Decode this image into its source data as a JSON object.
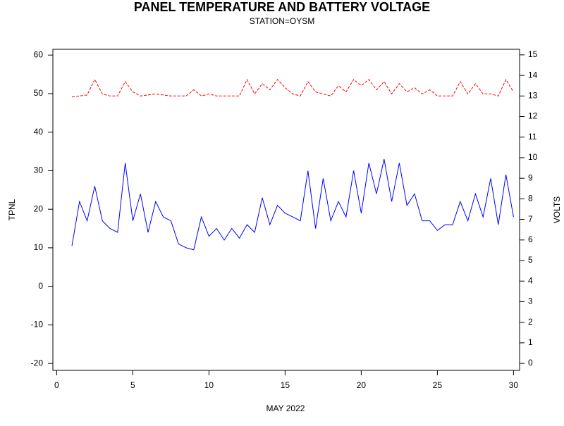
{
  "chart_data": {
    "type": "line",
    "title": "PANEL TEMPERATURE AND BATTERY VOLTAGE",
    "subtitle": "STATION=OYSM",
    "x_label": "MAY 2022",
    "y_label": "TPNL",
    "y2_label": "VOLTS",
    "xlim": [
      -0.25,
      30.4
    ],
    "xticks": [
      0,
      5,
      10,
      15,
      20,
      25,
      30
    ],
    "ylim": [
      -21.8,
      61.5
    ],
    "yticks": [
      -20,
      -10,
      0,
      10,
      20,
      30,
      40,
      50,
      60
    ],
    "y2lim": [
      -0.34,
      15.27
    ],
    "y2ticks": [
      0,
      1,
      2,
      3,
      4,
      5,
      6,
      7,
      8,
      9,
      10,
      11,
      12,
      13,
      14,
      15
    ],
    "x": [
      1,
      1.5,
      2,
      2.5,
      3,
      3.5,
      4,
      4.5,
      5,
      5.5,
      6,
      6.5,
      7,
      7.5,
      8,
      8.5,
      9,
      9.5,
      10,
      10.5,
      11,
      11.5,
      12,
      12.5,
      13,
      13.5,
      14,
      14.5,
      15,
      15.5,
      16,
      16.5,
      17,
      17.5,
      18,
      18.5,
      19,
      19.5,
      20,
      20.5,
      21,
      21.5,
      22,
      22.5,
      23,
      23.5,
      24,
      24.5,
      25,
      25.5,
      26,
      26.5,
      27,
      27.5,
      28,
      28.5,
      29,
      29.5,
      30
    ],
    "series": [
      {
        "name": "TPNL",
        "color": "#0000ff",
        "dash": false,
        "axis": "y",
        "values": [
          10.5,
          22,
          17,
          26,
          17,
          15,
          14,
          32,
          17,
          24,
          14,
          22,
          18,
          17,
          11,
          10,
          9.5,
          18,
          13,
          15,
          12,
          15,
          12.5,
          16,
          14,
          23,
          16,
          21,
          19,
          18,
          17,
          30,
          15,
          28,
          17,
          22,
          18,
          30,
          19,
          32,
          24,
          33,
          22,
          32,
          21,
          24,
          17,
          17,
          14.5,
          16,
          16,
          22,
          17,
          24,
          18,
          28,
          16,
          29,
          18
        ]
      },
      {
        "name": "VOLTS",
        "color": "#ff0000",
        "dash": true,
        "axis": "y2",
        "values": [
          12.95,
          13.0,
          13.05,
          13.8,
          13.1,
          13.0,
          13.0,
          13.7,
          13.2,
          13.0,
          13.05,
          13.1,
          13.05,
          13.0,
          13.0,
          13.0,
          13.3,
          13.0,
          13.1,
          13.0,
          13.0,
          13.0,
          13.0,
          13.8,
          13.1,
          13.6,
          13.3,
          13.8,
          13.4,
          13.1,
          13.0,
          13.7,
          13.2,
          13.1,
          13.0,
          13.5,
          13.2,
          13.8,
          13.5,
          13.8,
          13.3,
          13.7,
          13.1,
          13.6,
          13.2,
          13.4,
          13.1,
          13.3,
          13.0,
          13.0,
          13.0,
          13.7,
          13.1,
          13.6,
          13.1,
          13.1,
          13.0,
          13.8,
          13.2
        ]
      }
    ]
  }
}
